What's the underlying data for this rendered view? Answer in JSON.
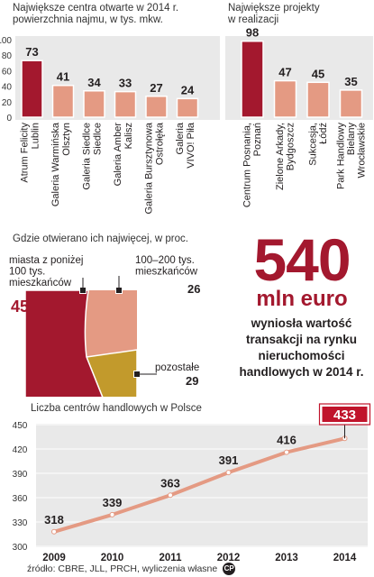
{
  "colors": {
    "dark_red": "#a3182e",
    "salmon": "#e49a83",
    "gold": "#c29a2c",
    "panel": "#e9e9e9",
    "line": "#e49a83",
    "badge": "#c0142b"
  },
  "chart_data": [
    {
      "type": "bar",
      "title": "Największe centra otwarte w 2014 r.\npowierzchnia najmu, w tys. mkw.",
      "categories": [
        "Atrum Felicity\nLublin",
        "Galeria Warmińska\nOlsztyn",
        "Galeria Siedlce\nSiedlce",
        "Galeria Amber\nKalisz",
        "Galeria Bursztynowa\nOstrołęka",
        "Galeria\nVIVO! Piła"
      ],
      "values": [
        73,
        41,
        34,
        33,
        27,
        24
      ],
      "ylim": [
        0,
        100
      ],
      "yticks": [
        0,
        20,
        40,
        60,
        80,
        100
      ]
    },
    {
      "type": "bar",
      "title": "Największe projekty\nw realizacji",
      "categories": [
        "Centrum Posnania,\nPoznań",
        "Zielone Arkady,\nBydgoszcz",
        "Sukcesja,\nŁódź",
        "Park Handlowy\nBielany\nWrocławskie"
      ],
      "values": [
        98,
        47,
        45,
        35
      ],
      "ylim": [
        0,
        100
      ]
    },
    {
      "type": "pie",
      "title": "Gdzie otwierano ich najwięcej, w proc.",
      "slices": [
        {
          "label": "miasta z poniżej\n100 tys.\nmieszkańców",
          "value": 45
        },
        {
          "label": "100–200 tys.\nmieszkańców",
          "value": 26
        },
        {
          "label": "pozostałe",
          "value": 29
        }
      ]
    },
    {
      "type": "line",
      "title": "Liczba centrów handlowych w Polsce",
      "x": [
        "2009",
        "2010",
        "2011",
        "2012",
        "2013",
        "2014"
      ],
      "values": [
        318,
        339,
        363,
        391,
        416,
        433
      ],
      "ylim": [
        300,
        450
      ],
      "yticks": [
        300,
        330,
        360,
        390,
        420,
        450
      ]
    }
  ],
  "highlight": {
    "number": "540",
    "unit": "mln euro",
    "text": "wyniosła wartość\ntransakcji na rynku\nnieruchomości\nhandlowych w 2014 r."
  },
  "source": "źródło: CBRE, JLL, PRCH, wyliczenia własne",
  "logo_text": "CP"
}
